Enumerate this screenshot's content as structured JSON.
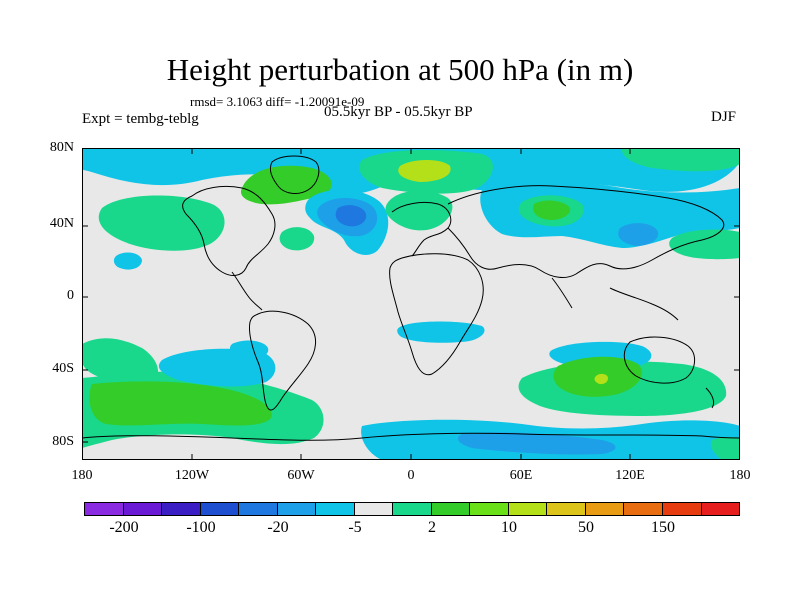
{
  "title": "Height perturbation at 500 hPa (in m)",
  "rmsd_line": "rmsd= 3.1063 diff= -1.20091e-09",
  "experiment": "Expt = tembg-teblg",
  "subtitle": "05.5kyr BP - 05.5kyr BP",
  "season": "DJF",
  "y_ticks": [
    "80N",
    "40N",
    "0",
    "40S",
    "80S"
  ],
  "x_ticks": [
    "180",
    "120W",
    "60W",
    "0",
    "60E",
    "120E",
    "180"
  ],
  "colorbar": {
    "colors": [
      "#8a2be2",
      "#6a19d4",
      "#3c1fc4",
      "#1d4fd0",
      "#1e78e0",
      "#1ea0e8",
      "#10c4e8",
      "#e8e8e8",
      "#19d88c",
      "#34cc28",
      "#6ae018",
      "#b4e01a",
      "#dcc41a",
      "#e89c14",
      "#e86c10",
      "#e63c10",
      "#e61e1e"
    ],
    "labels": [
      "-200",
      "-100",
      "-20",
      "-5",
      "2",
      "10",
      "50",
      "150"
    ]
  },
  "legend_colors": {
    "neutral": "#e8e8e8",
    "light_blue": "#10c4e8",
    "mid_blue": "#1ea0e8",
    "blue": "#1e78e0",
    "light_green": "#19d88c",
    "green": "#34cc28",
    "yellow_green": "#b4e01a",
    "yellow": "#dcc41a"
  }
}
